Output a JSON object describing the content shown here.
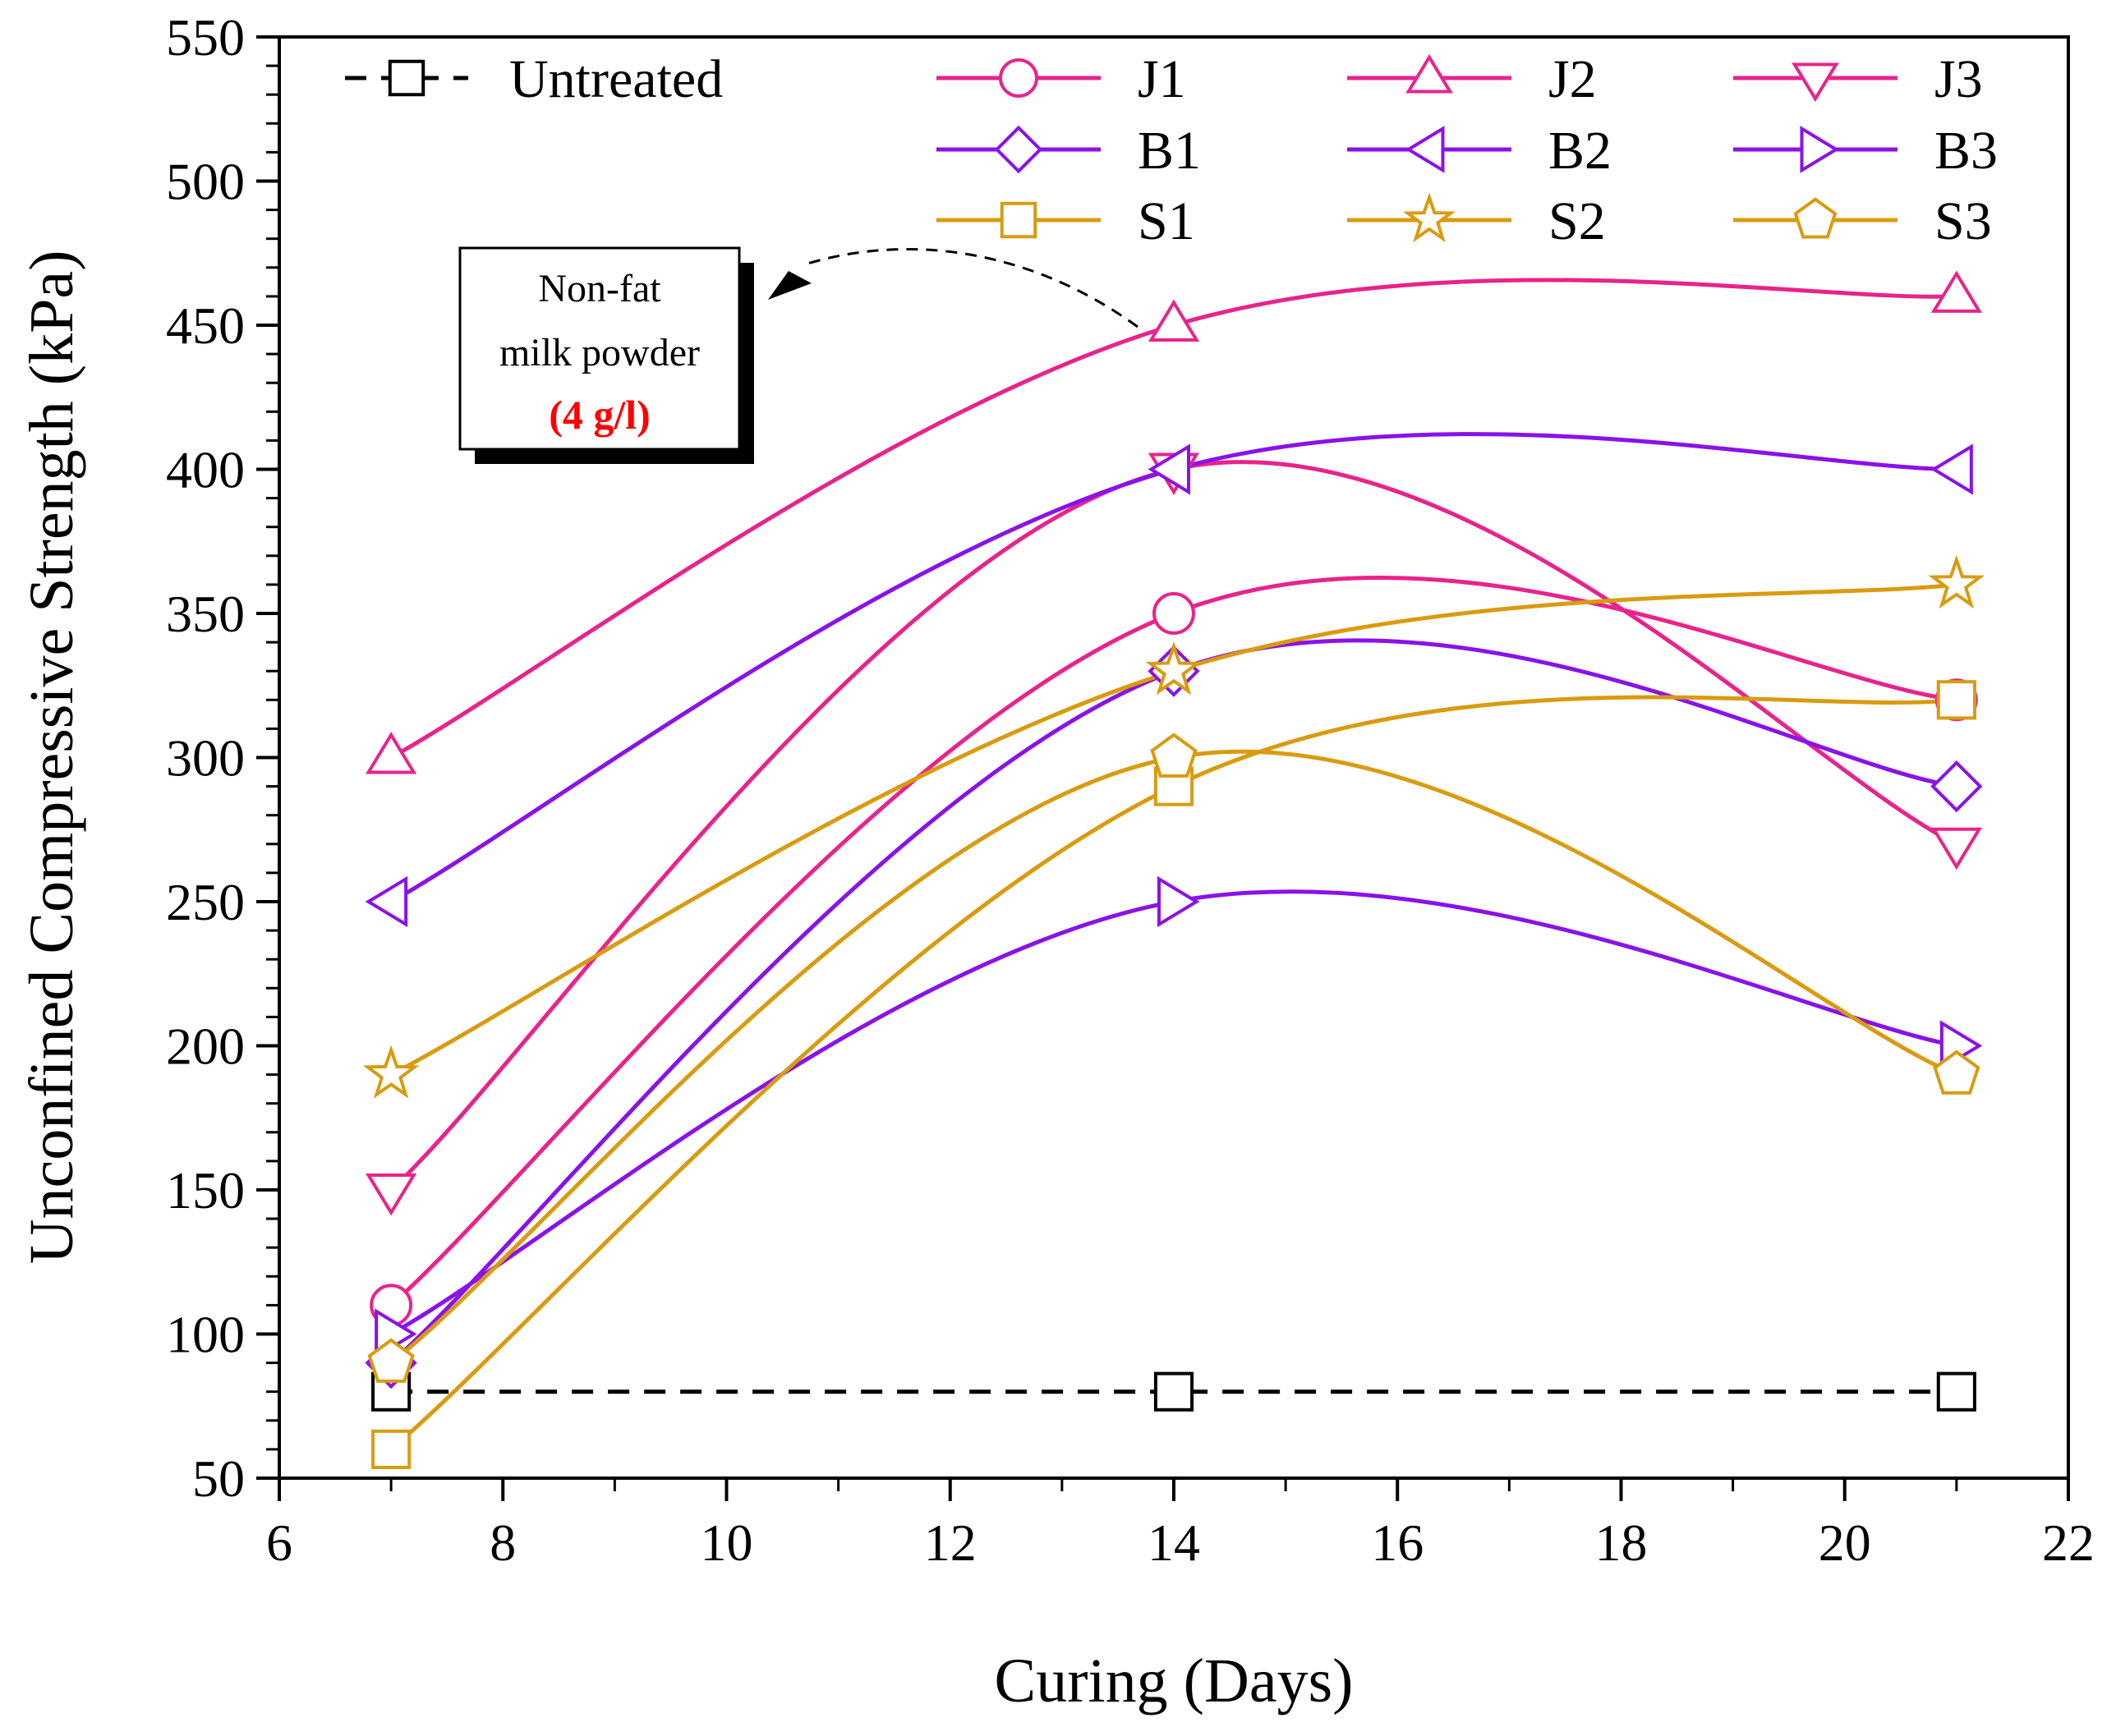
{
  "chart_data": {
    "type": "line",
    "xlabel": "Curing (Days)",
    "ylabel": "Unconfined Compressive Strength (kPa)",
    "xlim": [
      6,
      22
    ],
    "ylim": [
      50,
      550
    ],
    "x_ticks": [
      "6",
      "8",
      "10",
      "12",
      "14",
      "16",
      "18",
      "20",
      "22"
    ],
    "y_ticks": [
      "50",
      "100",
      "150",
      "200",
      "250",
      "300",
      "350",
      "400",
      "450",
      "500",
      "550"
    ],
    "x": [
      7,
      14,
      21
    ],
    "series": [
      {
        "name": "Untreated",
        "values": [
          80,
          80,
          80
        ],
        "color": "#000000",
        "marker": "square",
        "dashed": true
      },
      {
        "name": "J1",
        "values": [
          110,
          350,
          320
        ],
        "color": "#e8238c",
        "marker": "circle"
      },
      {
        "name": "J2",
        "values": [
          300,
          450,
          460
        ],
        "color": "#e8238c",
        "marker": "triangle-up"
      },
      {
        "name": "J3",
        "values": [
          150,
          400,
          270
        ],
        "color": "#e8238c",
        "marker": "triangle-down"
      },
      {
        "name": "B1",
        "values": [
          90,
          330,
          290
        ],
        "color": "#8a12e8",
        "marker": "diamond"
      },
      {
        "name": "B2",
        "values": [
          250,
          400,
          400
        ],
        "color": "#8a12e8",
        "marker": "triangle-left"
      },
      {
        "name": "B3",
        "values": [
          100,
          250,
          200
        ],
        "color": "#8a12e8",
        "marker": "triangle-right"
      },
      {
        "name": "S1",
        "values": [
          60,
          290,
          320
        ],
        "color": "#d99b0f",
        "marker": "square"
      },
      {
        "name": "S2",
        "values": [
          190,
          330,
          360
        ],
        "color": "#d99b0f",
        "marker": "star"
      },
      {
        "name": "S3",
        "values": [
          90,
          300,
          190
        ],
        "color": "#d99b0f",
        "marker": "pentagon"
      }
    ],
    "legend_position": "top",
    "annotation": {
      "line1": "Non-fat",
      "line2": "milk powder",
      "line3": "(4 g/l)",
      "highlight_color": "#ff0000",
      "points_to": "J2"
    }
  }
}
